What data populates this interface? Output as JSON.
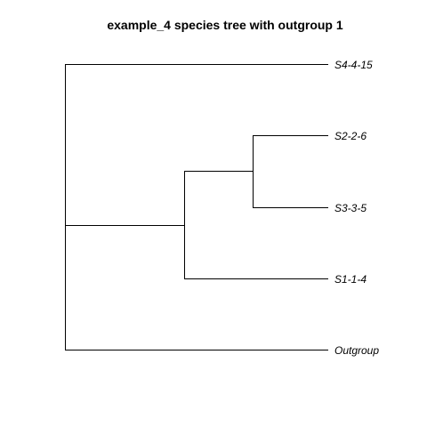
{
  "title": "example_4 species tree with outgroup 1",
  "tree": {
    "leaves": [
      {
        "id": "S4",
        "label": "S4-4-15"
      },
      {
        "id": "S2",
        "label": "S2-2-6"
      },
      {
        "id": "S3",
        "label": "S3-3-5"
      },
      {
        "id": "S1",
        "label": "S1-1-4"
      },
      {
        "id": "OG",
        "label": "Outgroup"
      }
    ],
    "structure": "(S4-4-15,((S2-2-6,S3-3-5),S1-1-4),Outgroup)"
  },
  "colors": {
    "line": "#000000",
    "text": "#000000",
    "background": "#ffffff"
  }
}
